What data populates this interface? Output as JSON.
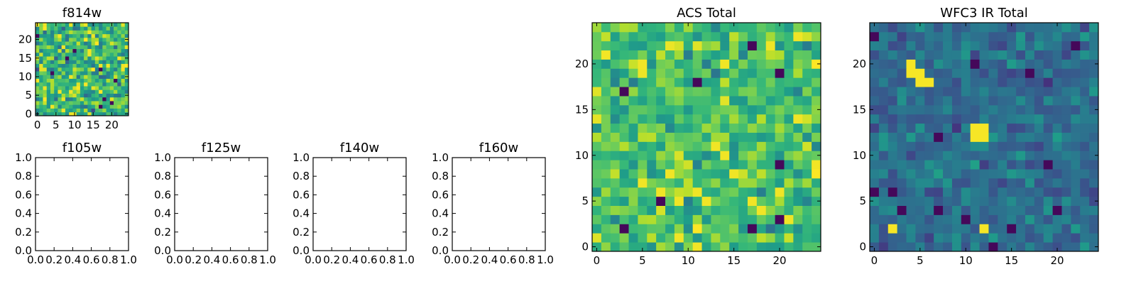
{
  "figure": {
    "background": "#ffffff",
    "colormap": "viridis"
  },
  "chart_data": [
    {
      "id": "f814w",
      "type": "heatmap",
      "title": "f814w",
      "grid_size": 25,
      "xlim": [
        -0.5,
        24.5
      ],
      "ylim": [
        -0.5,
        24.5
      ],
      "xticks": [
        0,
        5,
        10,
        15,
        20
      ],
      "yticks": [
        0,
        5,
        10,
        15,
        20
      ],
      "tick_labels_x": [
        "0",
        "5",
        "10",
        "15",
        "20"
      ],
      "tick_labels_y": [
        "0",
        "5",
        "10",
        "15",
        "20"
      ],
      "value_distribution": {
        "mean": 0.66,
        "spread": 0.16,
        "seed": 11,
        "dark_pixels": 10,
        "bright_pixels": 18
      }
    },
    {
      "id": "f105w",
      "type": "empty",
      "title": "f105w",
      "xlim": [
        0.0,
        1.0
      ],
      "ylim": [
        0.0,
        1.0
      ],
      "xticks": [
        0.0,
        0.2,
        0.4,
        0.6,
        0.8,
        1.0
      ],
      "yticks": [
        0.0,
        0.2,
        0.4,
        0.6,
        0.8,
        1.0
      ],
      "tick_labels_x": [
        "0.0",
        "0.2",
        "0.4",
        "0.6",
        "0.8",
        "1.0"
      ],
      "tick_labels_y": [
        "0.0",
        "0.2",
        "0.4",
        "0.6",
        "0.8",
        "1.0"
      ]
    },
    {
      "id": "f125w",
      "type": "empty",
      "title": "f125w",
      "xlim": [
        0.0,
        1.0
      ],
      "ylim": [
        0.0,
        1.0
      ],
      "xticks": [
        0.0,
        0.2,
        0.4,
        0.6,
        0.8,
        1.0
      ],
      "yticks": [
        0.0,
        0.2,
        0.4,
        0.6,
        0.8,
        1.0
      ],
      "tick_labels_x": [
        "0.0",
        "0.2",
        "0.4",
        "0.6",
        "0.8",
        "1.0"
      ],
      "tick_labels_y": [
        "0.0",
        "0.2",
        "0.4",
        "0.6",
        "0.8",
        "1.0"
      ]
    },
    {
      "id": "f140w",
      "type": "empty",
      "title": "f140w",
      "xlim": [
        0.0,
        1.0
      ],
      "ylim": [
        0.0,
        1.0
      ],
      "xticks": [
        0.0,
        0.2,
        0.4,
        0.6,
        0.8,
        1.0
      ],
      "yticks": [
        0.0,
        0.2,
        0.4,
        0.6,
        0.8,
        1.0
      ],
      "tick_labels_x": [
        "0.0",
        "0.2",
        "0.4",
        "0.6",
        "0.8",
        "1.0"
      ],
      "tick_labels_y": [
        "0.0",
        "0.2",
        "0.4",
        "0.6",
        "0.8",
        "1.0"
      ]
    },
    {
      "id": "f160w",
      "type": "empty",
      "title": "f160w",
      "xlim": [
        0.0,
        1.0
      ],
      "ylim": [
        0.0,
        1.0
      ],
      "xticks": [
        0.0,
        0.2,
        0.4,
        0.6,
        0.8,
        1.0
      ],
      "yticks": [
        0.0,
        0.2,
        0.4,
        0.6,
        0.8,
        1.0
      ],
      "tick_labels_x": [
        "0.0",
        "0.2",
        "0.4",
        "0.6",
        "0.8",
        "1.0"
      ],
      "tick_labels_y": [
        "0.0",
        "0.2",
        "0.4",
        "0.6",
        "0.8",
        "1.0"
      ]
    },
    {
      "id": "acs_total",
      "type": "heatmap",
      "title": "ACS Total",
      "grid_size": 25,
      "xlim": [
        -0.5,
        24.5
      ],
      "ylim": [
        -0.5,
        24.5
      ],
      "xticks": [
        0,
        5,
        10,
        15,
        20
      ],
      "yticks": [
        0,
        5,
        10,
        15,
        20
      ],
      "tick_labels_x": [
        "0",
        "5",
        "10",
        "15",
        "20"
      ],
      "tick_labels_y": [
        "0",
        "5",
        "10",
        "15",
        "20"
      ],
      "value_distribution": {
        "mean": 0.7,
        "spread": 0.12,
        "seed": 23,
        "dark_pixels": 9,
        "bright_pixels": 22
      }
    },
    {
      "id": "wfc3_ir_total",
      "type": "heatmap",
      "title": "WFC3 IR Total",
      "grid_size": 25,
      "xlim": [
        -0.5,
        24.5
      ],
      "ylim": [
        -0.5,
        24.5
      ],
      "xticks": [
        0,
        5,
        10,
        15,
        20
      ],
      "yticks": [
        0,
        5,
        10,
        15,
        20
      ],
      "tick_labels_x": [
        "0",
        "5",
        "10",
        "15",
        "20"
      ],
      "tick_labels_y": [
        "0",
        "5",
        "10",
        "15",
        "20"
      ],
      "value_distribution": {
        "mean": 0.36,
        "spread": 0.08,
        "seed": 37,
        "dark_pixels": 14,
        "bright_pixels": 0
      },
      "bright_sources": [
        {
          "x": 4,
          "y": 20
        },
        {
          "x": 5,
          "y": 19
        },
        {
          "x": 5,
          "y": 18
        },
        {
          "x": 6,
          "y": 18
        },
        {
          "x": 4,
          "y": 19
        },
        {
          "x": 11,
          "y": 12
        },
        {
          "x": 12,
          "y": 12
        },
        {
          "x": 11,
          "y": 13
        },
        {
          "x": 12,
          "y": 13
        },
        {
          "x": 2,
          "y": 2
        },
        {
          "x": 12,
          "y": 2
        }
      ]
    }
  ]
}
